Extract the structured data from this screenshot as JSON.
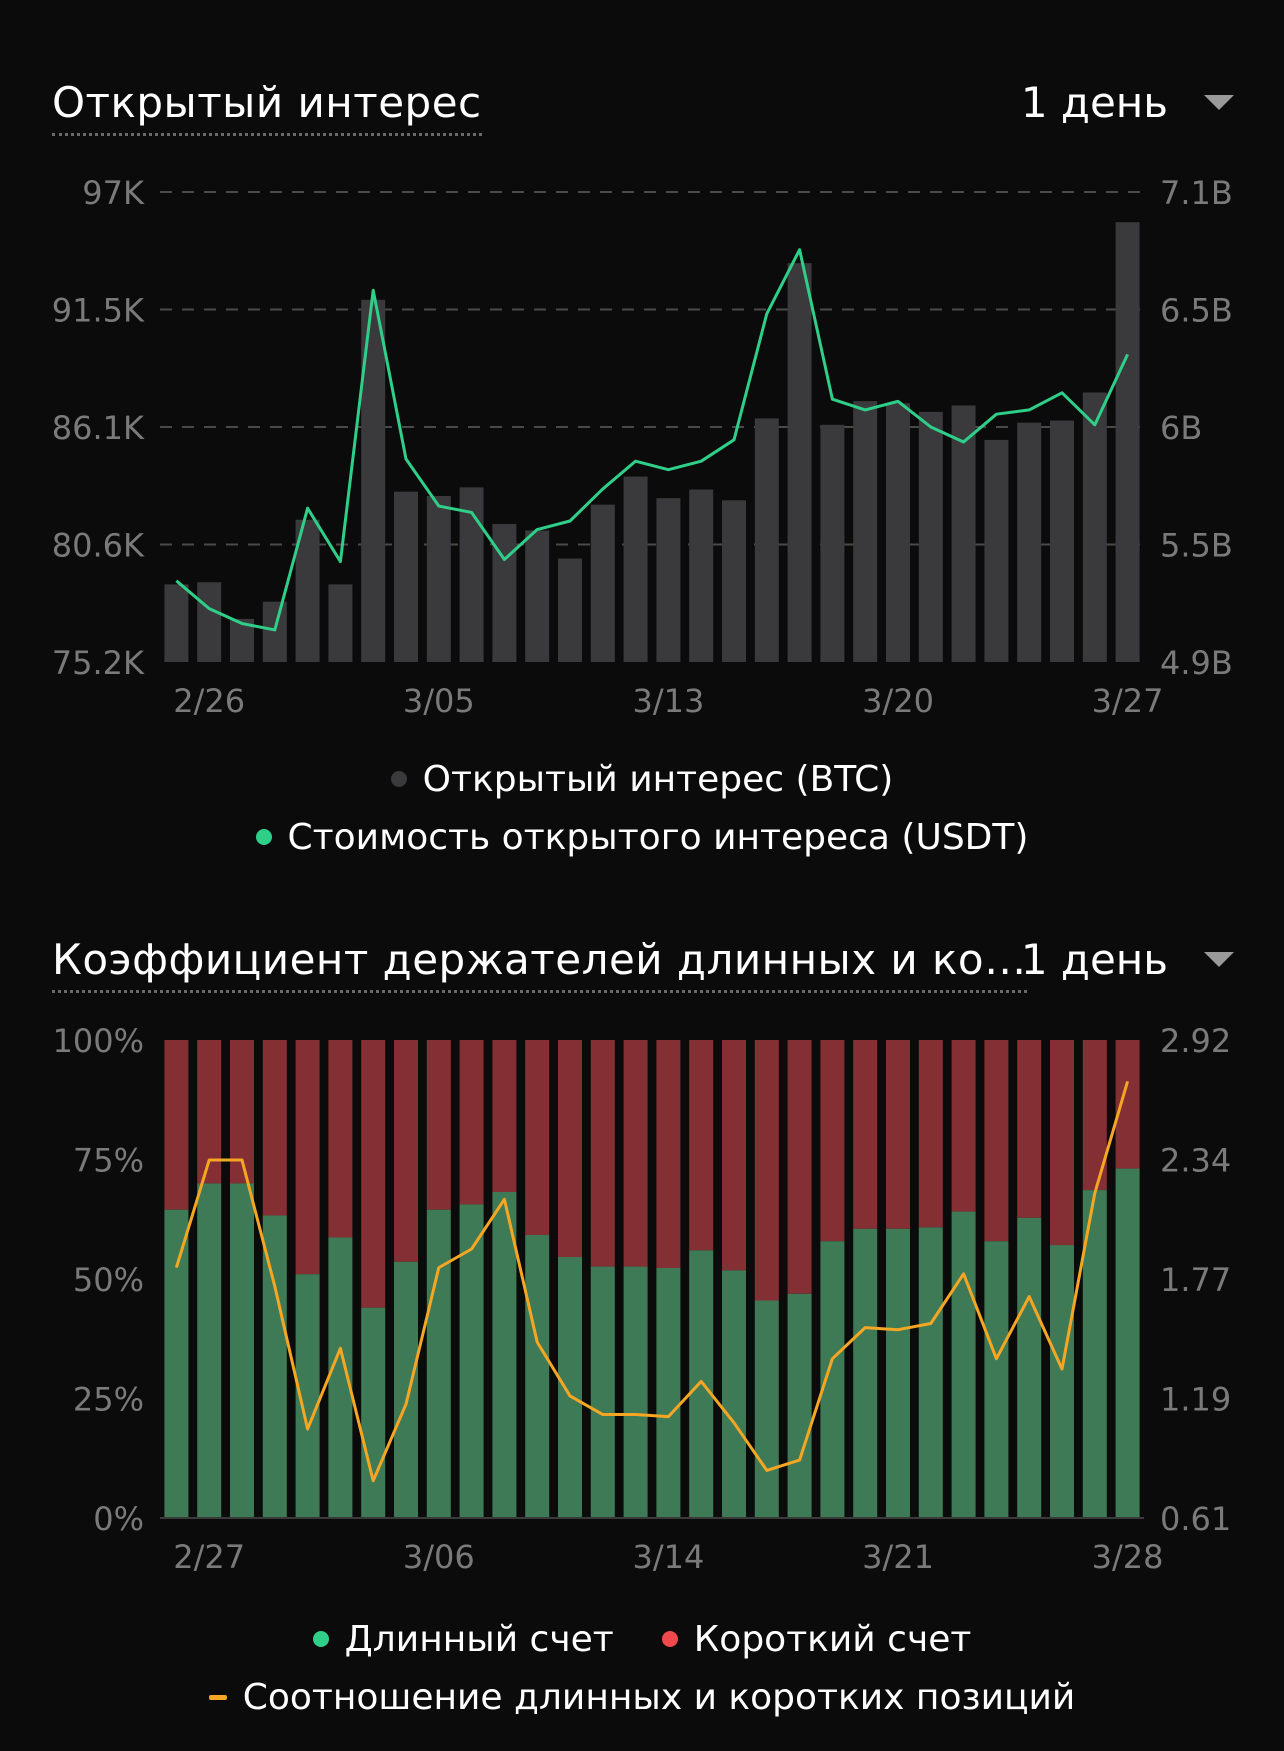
{
  "colors": {
    "background": "#0b0b0b",
    "oi_bar": "#3a3a3c",
    "oi_line": "#2fcf8a",
    "long_bar": "#3f7a57",
    "short_bar": "#842f33",
    "ratio_line": "#f5a623",
    "long_dot": "#2fcf8a",
    "short_dot": "#f0484c",
    "grid": "#4a4a4a"
  },
  "chart1": {
    "title": "Открытый интерес",
    "period": "1 день",
    "legend": [
      "Открытый интерес (BTC)",
      "Стоимость открытого интереса (USDT)"
    ]
  },
  "chart2": {
    "title": "Коэффициент держателей длинных и ко…",
    "period": "1 день",
    "legend": [
      "Длинный счет",
      "Короткий счет",
      "Соотношение длинных и коротких позиций"
    ]
  },
  "chart_data": [
    {
      "type": "bar",
      "title": "Открытый интерес",
      "y_left_ticks": [
        "97K",
        "91.5K",
        "86.1K",
        "80.6K",
        "75.2K"
      ],
      "y_right_ticks": [
        "7.1B",
        "6.5B",
        "6B",
        "5.5B",
        "4.9B"
      ],
      "y_left_range": [
        75200,
        97000
      ],
      "y_right_range": [
        4.9,
        7.1
      ],
      "x_tick_labels": [
        "2/26",
        "3/05",
        "3/13",
        "3/20",
        "3/27"
      ],
      "x_tick_index": [
        1,
        8,
        15,
        22,
        29
      ],
      "grid": true,
      "series": [
        {
          "name": "Открытый интерес (BTC)",
          "axis": "left",
          "kind": "bar",
          "values": [
            78800,
            78900,
            77200,
            78000,
            81800,
            78800,
            92000,
            83100,
            82900,
            83300,
            81600,
            81300,
            80000,
            82500,
            83800,
            82800,
            83200,
            82700,
            86500,
            93700,
            86200,
            87300,
            87200,
            86800,
            87100,
            85500,
            86300,
            86400,
            87700,
            95600
          ]
        },
        {
          "name": "Стоимость открытого интереса (USDT)",
          "axis": "right",
          "kind": "line",
          "values": [
            5.28,
            5.15,
            5.08,
            5.05,
            5.62,
            5.37,
            6.64,
            5.85,
            5.63,
            5.6,
            5.38,
            5.52,
            5.56,
            5.71,
            5.84,
            5.8,
            5.84,
            5.94,
            6.53,
            6.83,
            6.13,
            6.08,
            6.12,
            6.0,
            5.93,
            6.06,
            6.08,
            6.16,
            6.01,
            6.34
          ]
        }
      ]
    },
    {
      "type": "bar",
      "title": "Коэффициент держателей длинных и ко…",
      "y_left_ticks": [
        "100%",
        "75%",
        "50%",
        "25%",
        "0%"
      ],
      "y_right_ticks": [
        "2.92",
        "2.34",
        "1.77",
        "1.19",
        "0.61"
      ],
      "y_left_range": [
        0,
        100
      ],
      "y_right_range": [
        0.61,
        2.92
      ],
      "x_tick_labels": [
        "2/27",
        "3/06",
        "3/14",
        "3/21",
        "3/28"
      ],
      "x_tick_index": [
        1,
        8,
        15,
        22,
        29
      ],
      "grid": false,
      "series": [
        {
          "name": "Длинный счет",
          "axis": "left",
          "kind": "stacked-bar",
          "values": [
            64.5,
            70.0,
            70.0,
            63.3,
            51.0,
            58.7,
            44.0,
            53.6,
            64.5,
            65.6,
            68.2,
            59.2,
            54.6,
            52.6,
            52.6,
            52.3,
            56.0,
            51.8,
            45.5,
            46.9,
            57.9,
            60.5,
            60.5,
            60.8,
            64.1,
            57.9,
            62.8,
            57.1,
            68.6,
            73.1
          ]
        },
        {
          "name": "Короткий счет",
          "axis": "left",
          "kind": "stacked-bar",
          "values": [
            35.5,
            30.0,
            30.0,
            36.7,
            49.0,
            41.3,
            56.0,
            46.4,
            35.5,
            34.4,
            31.8,
            40.8,
            45.4,
            47.4,
            47.4,
            47.7,
            44.0,
            48.2,
            54.5,
            53.1,
            42.1,
            39.5,
            39.5,
            39.2,
            35.9,
            42.1,
            37.2,
            42.9,
            31.4,
            26.9
          ]
        },
        {
          "name": "Соотношение длинных и коротких позиций",
          "axis": "right",
          "kind": "line",
          "values": [
            1.82,
            2.34,
            2.34,
            1.73,
            1.04,
            1.43,
            0.79,
            1.16,
            1.82,
            1.91,
            2.15,
            1.46,
            1.2,
            1.11,
            1.11,
            1.1,
            1.27,
            1.07,
            0.84,
            0.89,
            1.38,
            1.53,
            1.52,
            1.55,
            1.79,
            1.38,
            1.68,
            1.33,
            2.18,
            2.72
          ]
        }
      ]
    }
  ]
}
